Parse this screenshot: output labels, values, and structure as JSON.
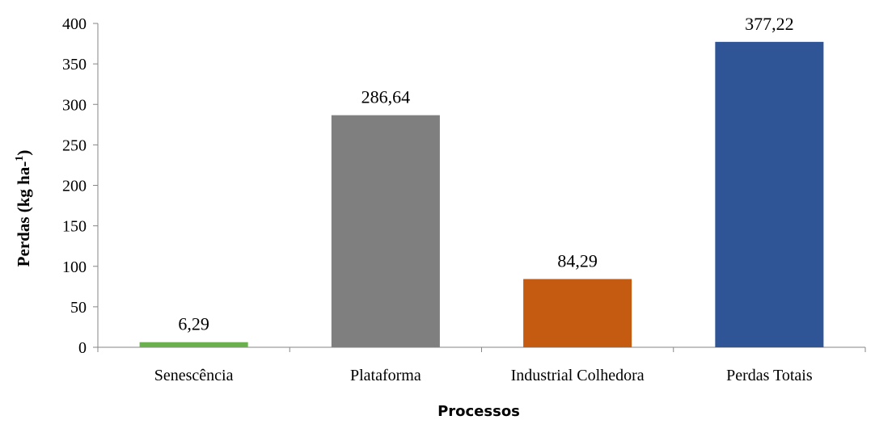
{
  "chart_data": {
    "type": "bar",
    "categories": [
      "Senescência",
      "Plataforma",
      "Industrial Colhedora",
      "Perdas Totais"
    ],
    "values": [
      6.29,
      286.64,
      84.29,
      377.22
    ],
    "value_labels": [
      "6,29",
      "286,64",
      "84,29",
      "377,22"
    ],
    "colors": [
      "#6ab04c",
      "#7f7f7f",
      "#c55a11",
      "#2f5597"
    ],
    "title": "",
    "xlabel": "Processos",
    "ylabel_prefix": "Perdas (kg ha-",
    "ylabel_sup": "1",
    "ylabel_suffix": ")",
    "ylim": [
      0,
      400
    ],
    "yticks": [
      "0",
      "50",
      "100",
      "150",
      "200",
      "250",
      "300",
      "350",
      "400"
    ],
    "grid": false,
    "legend": "none"
  }
}
